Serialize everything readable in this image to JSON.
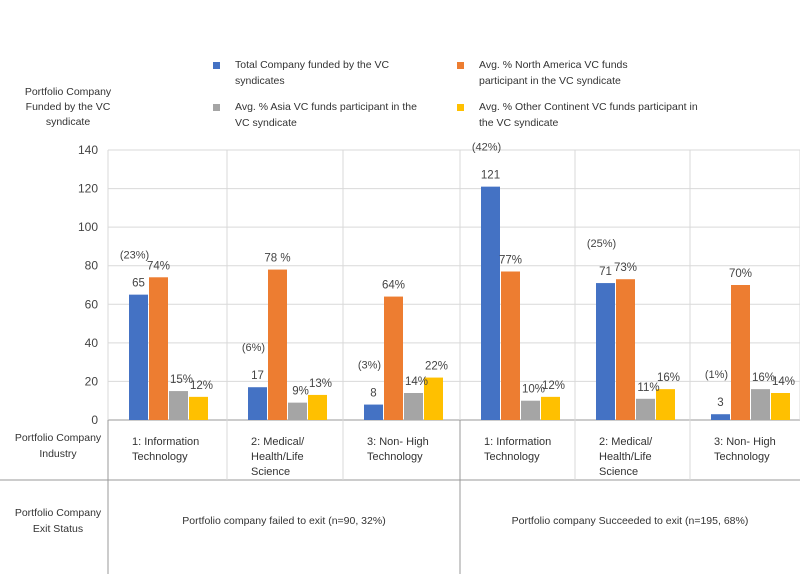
{
  "chart_data": {
    "type": "bar",
    "y_axis_title": [
      "Portfolio Company",
      "Funded by the VC",
      "syndicate"
    ],
    "ylim": [
      0,
      140
    ],
    "yticks": [
      0,
      20,
      40,
      60,
      80,
      100,
      120,
      140
    ],
    "grid": true,
    "legend_position": "top",
    "legend": [
      {
        "lines": [
          "Total Company funded by the VC",
          "syndicates"
        ],
        "color": "#4472C4"
      },
      {
        "lines": [
          "Avg.  % North America VC funds",
          "participant in the VC syndicate"
        ],
        "color": "#ED7D31"
      },
      {
        "lines": [
          "Avg.  % Asia VC funds participant in the",
          "VC syndicate"
        ],
        "color": "#A5A5A5"
      },
      {
        "lines": [
          "Avg.  % Other Continent VC funds participant in",
          "the VC syndicate"
        ],
        "color": "#FFC000"
      }
    ],
    "categories": [
      {
        "label": [
          "1: Information",
          "Technology"
        ],
        "status_group": 0
      },
      {
        "label": [
          "2: Medical/",
          "Health/Life",
          "Science"
        ],
        "status_group": 0
      },
      {
        "label": [
          "3: Non- High",
          "Technology"
        ],
        "status_group": 0
      },
      {
        "label": [
          "1: Information",
          "Technology"
        ],
        "status_group": 1
      },
      {
        "label": [
          "2: Medical/",
          "Health/Life",
          "Science"
        ],
        "status_group": 1
      },
      {
        "label": [
          "3: Non- High",
          "Technology"
        ],
        "status_group": 1
      }
    ],
    "series": [
      {
        "name": "Total Company funded by the VC syndicates",
        "color": "#4472C4",
        "values": [
          65,
          17,
          8,
          121,
          71,
          3
        ],
        "labels": [
          "65",
          "17",
          "8",
          "121",
          "71",
          "3"
        ],
        "share_labels": [
          "(23%)",
          "(6%)",
          "(3%)",
          "(42%)",
          "(25%)",
          "(1%)"
        ]
      },
      {
        "name": "Avg.  % North America VC funds participant in the VC syndicate",
        "color": "#ED7D31",
        "values": [
          74,
          78,
          64,
          77,
          73,
          70
        ],
        "labels": [
          "74%",
          "78 %",
          "64%",
          "77%",
          "73%",
          "70%"
        ]
      },
      {
        "name": "Avg.  % Asia VC funds participant in the VC syndicate",
        "color": "#A5A5A5",
        "values": [
          15,
          9,
          14,
          10,
          11,
          16
        ],
        "labels": [
          "15%",
          "9%",
          "14%",
          "10%",
          "11%",
          "16%"
        ]
      },
      {
        "name": "Avg.  % Other Continent VC funds participant in the VC syndicate",
        "color": "#FFC000",
        "values": [
          12,
          13,
          22,
          12,
          16,
          14
        ],
        "labels": [
          "12%",
          "13%",
          "22%",
          "12%",
          "16%",
          "14%"
        ]
      }
    ],
    "row_headers": {
      "industry": [
        "Portfolio Company",
        "Industry"
      ],
      "exit_status": [
        "Portfolio Company",
        "Exit Status"
      ]
    },
    "status_groups": [
      "Portfolio company failed to exit (n=90, 32%)",
      "Portfolio company Succeeded to exit (n=195, 68%)"
    ]
  }
}
